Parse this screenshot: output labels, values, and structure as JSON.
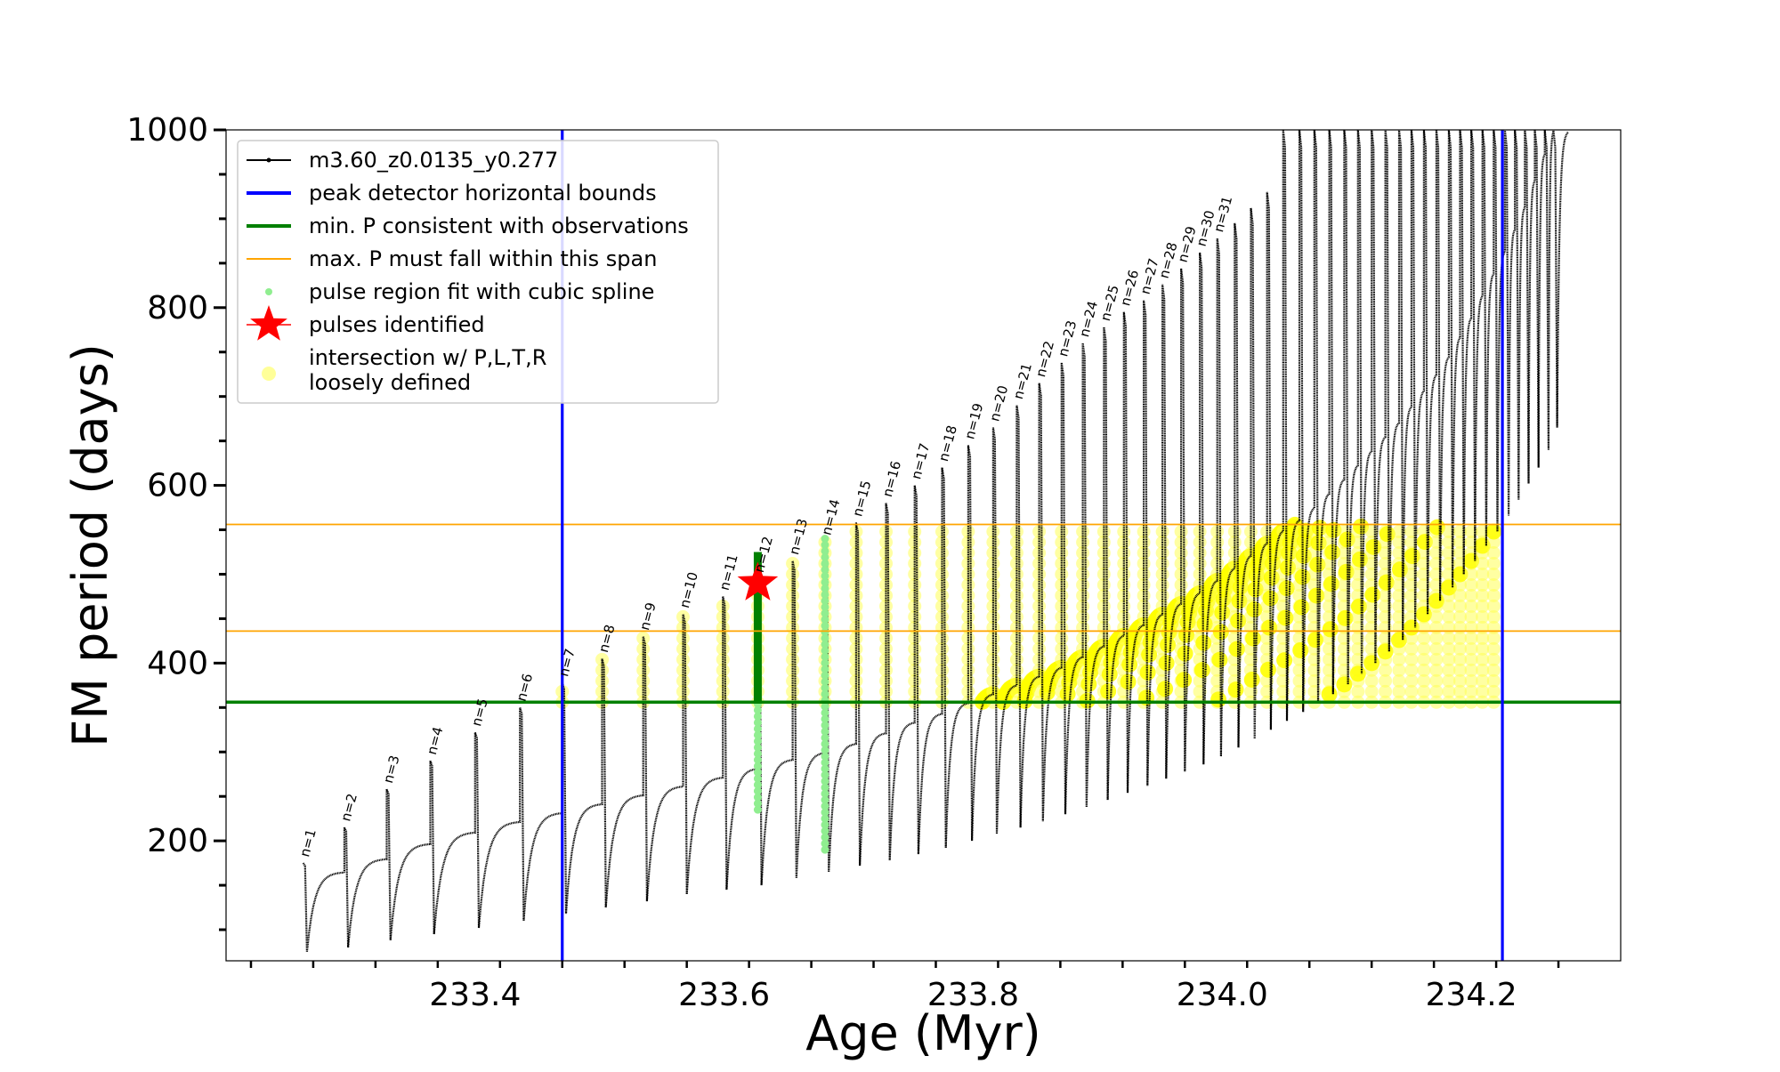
{
  "chart_data": {
    "type": "line",
    "title": "",
    "xlabel": "Age (Myr)",
    "ylabel": "FM period (days)",
    "xlim": [
      233.2,
      234.32
    ],
    "ylim": [
      65,
      1000
    ],
    "xticks": [
      233.4,
      233.6,
      233.8,
      234.0,
      234.2
    ],
    "xtick_labels": [
      "233.4",
      "233.6",
      "233.8",
      "234.0",
      "234.2"
    ],
    "yticks": [
      200,
      400,
      600,
      800,
      1000
    ],
    "ytick_labels": [
      "200",
      "400",
      "600",
      "800",
      "1000"
    ],
    "grid": false,
    "legend_position": "upper-left",
    "legend": [
      {
        "label": "m3.60_z0.0135_y0.277",
        "marker": "line-dot",
        "color": "#000000"
      },
      {
        "label": "peak detector horizontal bounds",
        "marker": "line",
        "color": "#0000ff"
      },
      {
        "label": "min. P consistent with observations",
        "marker": "line",
        "color": "#008000"
      },
      {
        "label": "max. P must fall within this span",
        "marker": "thin-line",
        "color": "#ffa500"
      },
      {
        "label": "pulse region fit with cubic spline",
        "marker": "dot",
        "color": "#90ee90"
      },
      {
        "label": "pulses identified",
        "marker": "star",
        "color": "#ff0000"
      },
      {
        "label": "intersection w/ P,L,T,R",
        "label2": "loosely defined",
        "marker": "circle",
        "color": "#ffff99"
      }
    ],
    "vertical_lines": [
      {
        "x": 233.47,
        "color": "#0000ff"
      },
      {
        "x": 234.225,
        "color": "#0000ff"
      }
    ],
    "horizontal_lines": [
      {
        "y": 356,
        "color": "#008000"
      },
      {
        "y": 436,
        "color": "#ffa500"
      },
      {
        "y": 556,
        "color": "#ffa500"
      }
    ],
    "pulse_ages": [
      233.262,
      233.295,
      233.329,
      233.364,
      233.4,
      233.436,
      233.47,
      233.502,
      233.535,
      233.567,
      233.599,
      233.627,
      233.655,
      233.681,
      233.706,
      233.73,
      233.753,
      233.775,
      233.796,
      233.816,
      233.835,
      233.853,
      233.871,
      233.888,
      233.905,
      233.921,
      233.937,
      233.952,
      233.967,
      233.982,
      233.996,
      234.01,
      234.023,
      234.036,
      234.049,
      234.062,
      234.074,
      234.086,
      234.098,
      234.109,
      234.12,
      234.131,
      234.142,
      234.152,
      234.162,
      234.172,
      234.182,
      234.191,
      234.2,
      234.209,
      234.218,
      234.227,
      234.235,
      234.243,
      234.251,
      234.259,
      234.266
    ],
    "pulse_peaks": [
      175,
      215,
      258,
      290,
      322,
      350,
      378,
      405,
      430,
      455,
      475,
      495,
      515,
      537,
      558,
      580,
      600,
      620,
      645,
      665,
      690,
      715,
      738,
      760,
      778,
      795,
      808,
      826,
      844,
      862,
      878,
      895,
      912,
      930,
      1000,
      1000,
      1000,
      1000,
      1000,
      1000,
      1000,
      1000,
      1000,
      1000,
      1000,
      1000,
      1000,
      1000,
      1000,
      1000,
      1000,
      1000,
      1000,
      1000,
      1000,
      1000,
      1000
    ],
    "pulse_troughs": [
      75,
      80,
      88,
      95,
      102,
      110,
      118,
      125,
      132,
      140,
      145,
      150,
      158,
      165,
      172,
      178,
      185,
      192,
      200,
      208,
      215,
      222,
      230,
      238,
      246,
      254,
      262,
      270,
      278,
      286,
      295,
      305,
      315,
      325,
      335,
      345,
      355,
      365,
      376,
      388,
      400,
      413,
      426,
      440,
      455,
      470,
      485,
      500,
      515,
      532,
      548,
      566,
      584,
      602,
      620,
      640,
      665
    ],
    "baseline_max": [
      165,
      180,
      197,
      210,
      222,
      232,
      242,
      252,
      262,
      272,
      282,
      292,
      300,
      310,
      322,
      334,
      344,
      356,
      366,
      376,
      386,
      396,
      408,
      420,
      432,
      444,
      456,
      468,
      480,
      494,
      508,
      522,
      536,
      550,
      562,
      576,
      592,
      608,
      624,
      640,
      656,
      672,
      690,
      708,
      726,
      746,
      768,
      790,
      815,
      840,
      865,
      890,
      915,
      945,
      975,
      1000,
      1000
    ],
    "pulse_labels": [
      "n=1",
      "n=2",
      "n=3",
      "n=4",
      "n=5",
      "n=6",
      "n=7",
      "n=8",
      "n=9",
      "n=10",
      "n=11",
      "n=12",
      "n=13",
      "n=14",
      "n=15",
      "n=16",
      "n=17",
      "n=18",
      "n=19",
      "n=20",
      "n=21",
      "n=22",
      "n=23",
      "n=24",
      "n=25",
      "n=26",
      "n=27",
      "n=28",
      "n=29",
      "n=30",
      "n=31"
    ],
    "pulses_identified": [
      {
        "x": 233.627,
        "y": 490,
        "label": "n=11"
      }
    ],
    "identified_pulse_span": [
      356,
      525
    ],
    "spline_pulses": [
      {
        "x": 233.627,
        "y_min": 235,
        "y_max": 500
      },
      {
        "x": 233.681,
        "y_min": 190,
        "y_max": 540
      }
    ],
    "intersection_region": {
      "y_min": 356,
      "y_max": 556,
      "x_start": 233.47,
      "x_end": 234.225
    }
  }
}
